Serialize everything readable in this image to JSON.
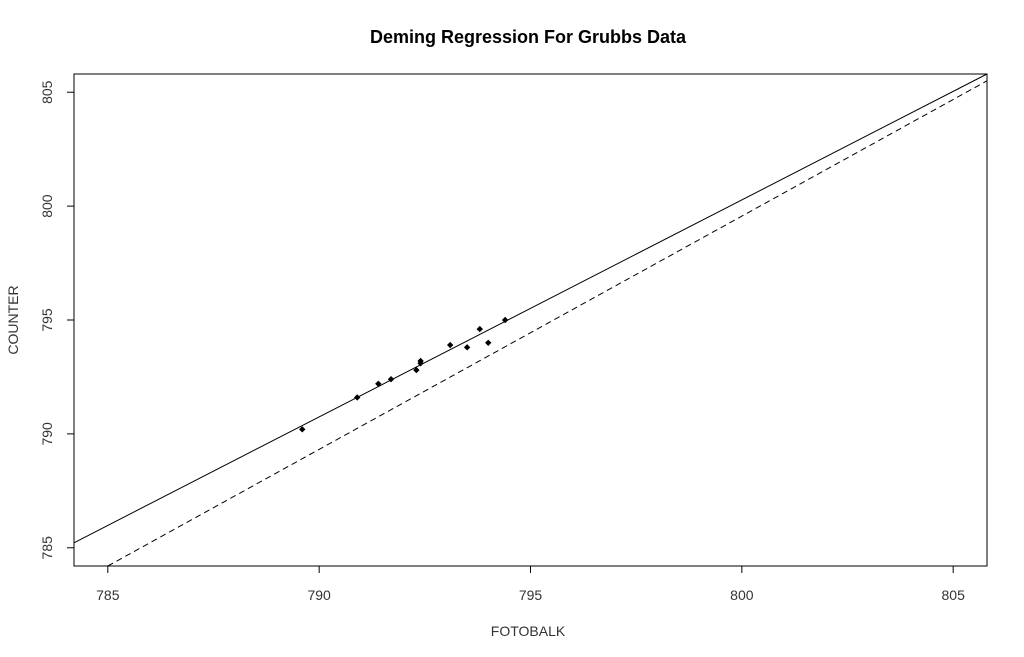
{
  "chart_data": {
    "type": "scatter",
    "title": "Deming Regression For Grubbs Data",
    "xlabel": "FOTOBALK",
    "ylabel": "COUNTER",
    "xlim": [
      784.2,
      805.8
    ],
    "ylim": [
      784.2,
      805.8
    ],
    "x_ticks": [
      785,
      790,
      795,
      800,
      805
    ],
    "y_ticks": [
      785,
      790,
      795,
      800,
      805
    ],
    "grid": false,
    "points": [
      {
        "x": 789.6,
        "y": 790.2
      },
      {
        "x": 790.9,
        "y": 791.6
      },
      {
        "x": 791.4,
        "y": 792.2
      },
      {
        "x": 791.7,
        "y": 792.4
      },
      {
        "x": 792.3,
        "y": 792.8
      },
      {
        "x": 792.4,
        "y": 793.1
      },
      {
        "x": 792.4,
        "y": 793.2
      },
      {
        "x": 793.1,
        "y": 793.9
      },
      {
        "x": 793.5,
        "y": 793.8
      },
      {
        "x": 793.8,
        "y": 794.6
      },
      {
        "x": 794.0,
        "y": 794.0
      },
      {
        "x": 794.4,
        "y": 795.0
      }
    ],
    "lines": [
      {
        "style": "solid",
        "x": [
          784.2,
          805.8
        ],
        "y": [
          785.22,
          805.8
        ]
      },
      {
        "style": "dashed",
        "x": [
          785.0,
          805.8
        ],
        "y": [
          784.2,
          805.5
        ]
      }
    ]
  }
}
